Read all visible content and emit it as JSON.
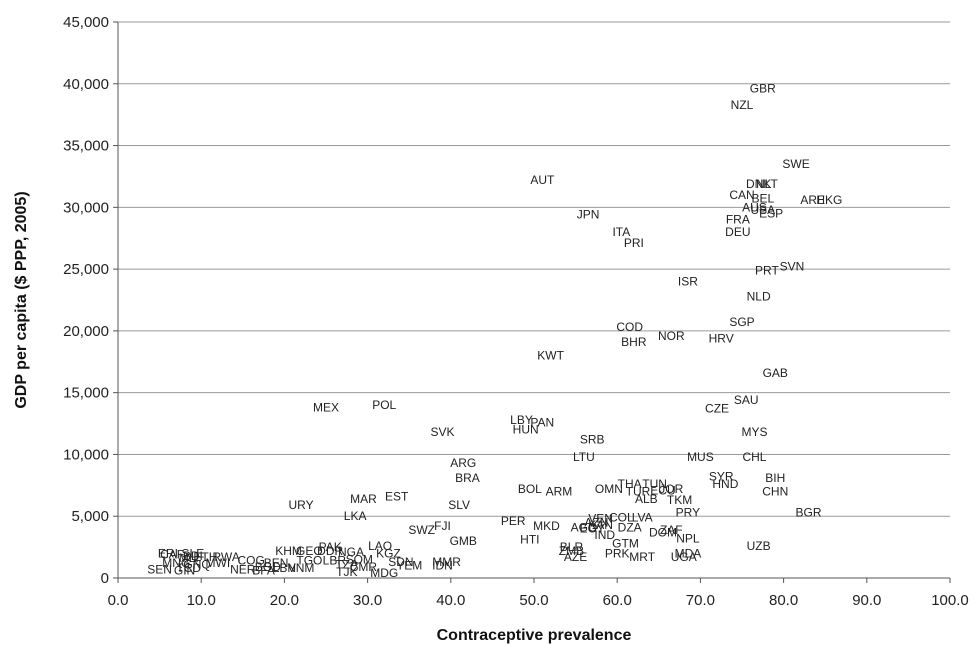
{
  "chart_data": {
    "type": "scatter",
    "title": "",
    "xlabel": "Contraceptive prevalence",
    "ylabel": "GDP per capita ($ PPP, 2005)",
    "xlim": [
      0,
      100
    ],
    "ylim": [
      0,
      45000
    ],
    "grid": "horizontal",
    "marker": "text-labels",
    "x_ticks": [
      "0.0",
      "10.0",
      "20.0",
      "30.0",
      "40.0",
      "50.0",
      "60.0",
      "70.0",
      "80.0",
      "90.0",
      "100.0"
    ],
    "y_ticks": [
      "0",
      "5,000",
      "10,000",
      "15,000",
      "20,000",
      "25,000",
      "30,000",
      "35,000",
      "40,000",
      "45,000"
    ],
    "points": [
      {
        "label": "GBR",
        "x": 77.5,
        "y": 39600
      },
      {
        "label": "NZL",
        "x": 75.0,
        "y": 38300
      },
      {
        "label": "SWE",
        "x": 81.5,
        "y": 33500
      },
      {
        "label": "AUT",
        "x": 51.0,
        "y": 32200
      },
      {
        "label": "DNK",
        "x": 77.0,
        "y": 31900
      },
      {
        "label": "NLT",
        "x": 78.0,
        "y": 31900
      },
      {
        "label": "CAN",
        "x": 75.0,
        "y": 31000
      },
      {
        "label": "BEL",
        "x": 77.5,
        "y": 30700
      },
      {
        "label": "ARE",
        "x": 83.5,
        "y": 30600
      },
      {
        "label": "HKG",
        "x": 85.5,
        "y": 30600
      },
      {
        "label": "AUS",
        "x": 76.5,
        "y": 30000
      },
      {
        "label": "USA",
        "x": 77.5,
        "y": 29800
      },
      {
        "label": "ESP",
        "x": 78.5,
        "y": 29500
      },
      {
        "label": "JPN",
        "x": 56.5,
        "y": 29400
      },
      {
        "label": "FRA",
        "x": 74.5,
        "y": 29000
      },
      {
        "label": "ITA",
        "x": 60.5,
        "y": 28000
      },
      {
        "label": "DEU",
        "x": 74.5,
        "y": 28000
      },
      {
        "label": "PRI",
        "x": 62.0,
        "y": 27100
      },
      {
        "label": "SVN",
        "x": 81.0,
        "y": 25200
      },
      {
        "label": "PRT",
        "x": 78.0,
        "y": 24900
      },
      {
        "label": "ISR",
        "x": 68.5,
        "y": 24000
      },
      {
        "label": "NLD",
        "x": 77.0,
        "y": 22800
      },
      {
        "label": "SGP",
        "x": 75.0,
        "y": 20700
      },
      {
        "label": "COD",
        "x": 61.5,
        "y": 20300
      },
      {
        "label": "NOR",
        "x": 66.5,
        "y": 19600
      },
      {
        "label": "HRV",
        "x": 72.5,
        "y": 19400
      },
      {
        "label": "BHR",
        "x": 62.0,
        "y": 19100
      },
      {
        "label": "KWT",
        "x": 52.0,
        "y": 18000
      },
      {
        "label": "GAB",
        "x": 79.0,
        "y": 16600
      },
      {
        "label": "SAU",
        "x": 75.5,
        "y": 14400
      },
      {
        "label": "POL",
        "x": 32.0,
        "y": 14000
      },
      {
        "label": "MEX",
        "x": 25.0,
        "y": 13800
      },
      {
        "label": "CZE",
        "x": 72.0,
        "y": 13700
      },
      {
        "label": "LBY",
        "x": 48.5,
        "y": 12800
      },
      {
        "label": "PAN",
        "x": 51.0,
        "y": 12600
      },
      {
        "label": "HUN",
        "x": 49.0,
        "y": 12000
      },
      {
        "label": "SVK",
        "x": 39.0,
        "y": 11800
      },
      {
        "label": "MYS",
        "x": 76.5,
        "y": 11800
      },
      {
        "label": "SRB",
        "x": 57.0,
        "y": 11200
      },
      {
        "label": "LTU",
        "x": 56.0,
        "y": 9800
      },
      {
        "label": "MUS",
        "x": 70.0,
        "y": 9800
      },
      {
        "label": "CHL",
        "x": 76.5,
        "y": 9800
      },
      {
        "label": "ARG",
        "x": 41.5,
        "y": 9300
      },
      {
        "label": "BRA",
        "x": 42.0,
        "y": 8100
      },
      {
        "label": "SYR",
        "x": 72.5,
        "y": 8200
      },
      {
        "label": "BIH",
        "x": 79.0,
        "y": 8100
      },
      {
        "label": "THA",
        "x": 61.5,
        "y": 7600
      },
      {
        "label": "TUN",
        "x": 64.5,
        "y": 7600
      },
      {
        "label": "HND",
        "x": 73.0,
        "y": 7600
      },
      {
        "label": "OMN",
        "x": 59.0,
        "y": 7200
      },
      {
        "label": "JOR",
        "x": 66.5,
        "y": 7200
      },
      {
        "label": "BOL",
        "x": 49.5,
        "y": 7200
      },
      {
        "label": "ECU",
        "x": 65.5,
        "y": 7100
      },
      {
        "label": "CHN",
        "x": 79.0,
        "y": 7000
      },
      {
        "label": "TUR",
        "x": 62.5,
        "y": 7000
      },
      {
        "label": "ARM",
        "x": 53.0,
        "y": 7000
      },
      {
        "label": "EST",
        "x": 33.5,
        "y": 6600
      },
      {
        "label": "MAR",
        "x": 29.5,
        "y": 6400
      },
      {
        "label": "ALB",
        "x": 63.5,
        "y": 6400
      },
      {
        "label": "TKM",
        "x": 67.5,
        "y": 6300
      },
      {
        "label": "URY",
        "x": 22.0,
        "y": 5900
      },
      {
        "label": "SLV",
        "x": 41.0,
        "y": 5900
      },
      {
        "label": "BGR",
        "x": 83.0,
        "y": 5300
      },
      {
        "label": "PRY",
        "x": 68.5,
        "y": 5300
      },
      {
        "label": "LKA",
        "x": 28.5,
        "y": 5000
      },
      {
        "label": "COL",
        "x": 60.5,
        "y": 4900
      },
      {
        "label": "LVA",
        "x": 63.0,
        "y": 4900
      },
      {
        "label": "VEN",
        "x": 58.0,
        "y": 4800
      },
      {
        "label": "PER",
        "x": 47.5,
        "y": 4600
      },
      {
        "label": "AZN",
        "x": 57.5,
        "y": 4500
      },
      {
        "label": "KAN",
        "x": 58.0,
        "y": 4300
      },
      {
        "label": "MKD",
        "x": 51.5,
        "y": 4200
      },
      {
        "label": "AGO",
        "x": 56.0,
        "y": 4100
      },
      {
        "label": "DZA",
        "x": 61.5,
        "y": 4100
      },
      {
        "label": "FJI",
        "x": 39.0,
        "y": 4200
      },
      {
        "label": "SWZ",
        "x": 36.5,
        "y": 3900
      },
      {
        "label": "EGY",
        "x": 57.0,
        "y": 4000
      },
      {
        "label": "ZAF",
        "x": 66.5,
        "y": 3900
      },
      {
        "label": "DOM",
        "x": 65.5,
        "y": 3700
      },
      {
        "label": "IND",
        "x": 58.5,
        "y": 3500
      },
      {
        "label": "NPL",
        "x": 68.5,
        "y": 3200
      },
      {
        "label": "HTI",
        "x": 49.5,
        "y": 3100
      },
      {
        "label": "GMB",
        "x": 41.5,
        "y": 3000
      },
      {
        "label": "GTM",
        "x": 61.0,
        "y": 2800
      },
      {
        "label": "UZB",
        "x": 77.0,
        "y": 2600
      },
      {
        "label": "BLR",
        "x": 54.5,
        "y": 2500
      },
      {
        "label": "LAO",
        "x": 31.5,
        "y": 2600
      },
      {
        "label": "PAK",
        "x": 25.5,
        "y": 2500
      },
      {
        "label": "ZMB",
        "x": 54.5,
        "y": 2200
      },
      {
        "label": "KHM",
        "x": 20.5,
        "y": 2200
      },
      {
        "label": "GEO",
        "x": 23.0,
        "y": 2200
      },
      {
        "label": "DDR",
        "x": 25.5,
        "y": 2200
      },
      {
        "label": "NGA",
        "x": 28.0,
        "y": 2100
      },
      {
        "label": "KGZ",
        "x": 32.5,
        "y": 2000
      },
      {
        "label": "PRK",
        "x": 60.0,
        "y": 2000
      },
      {
        "label": "MDA",
        "x": 68.5,
        "y": 2000
      },
      {
        "label": "MRT",
        "x": 63.0,
        "y": 1700
      },
      {
        "label": "UGA",
        "x": 68.0,
        "y": 1700
      },
      {
        "label": "AZE",
        "x": 55.0,
        "y": 1700
      },
      {
        "label": "RWA",
        "x": 13.0,
        "y": 1700
      },
      {
        "label": "COG",
        "x": 16.0,
        "y": 1400
      },
      {
        "label": "SDN",
        "x": 34.0,
        "y": 1300
      },
      {
        "label": "SOM",
        "x": 29.0,
        "y": 1500
      },
      {
        "label": "TGO",
        "x": 23.0,
        "y": 1400
      },
      {
        "label": "LBR",
        "x": 26.0,
        "y": 1400
      },
      {
        "label": "MMR",
        "x": 39.5,
        "y": 1300
      },
      {
        "label": "BEN",
        "x": 19.0,
        "y": 1200
      },
      {
        "label": "TZA",
        "x": 27.5,
        "y": 1100
      },
      {
        "label": "YEM",
        "x": 35.0,
        "y": 1000
      },
      {
        "label": "IDN",
        "x": 39.0,
        "y": 1000
      },
      {
        "label": "CMR",
        "x": 29.5,
        "y": 900
      },
      {
        "label": "LBN",
        "x": 20.0,
        "y": 800
      },
      {
        "label": "VNM",
        "x": 22.0,
        "y": 800
      },
      {
        "label": "BFA",
        "x": 17.5,
        "y": 600
      },
      {
        "label": "NER",
        "x": 15.0,
        "y": 700
      },
      {
        "label": "BGD",
        "x": 18.0,
        "y": 900
      },
      {
        "label": "TJK",
        "x": 27.5,
        "y": 500
      },
      {
        "label": "MDG",
        "x": 32.0,
        "y": 400
      },
      {
        "label": "SEN",
        "x": 5.0,
        "y": 700
      },
      {
        "label": "GIN",
        "x": 8.0,
        "y": 600
      },
      {
        "label": "CAF",
        "x": 6.5,
        "y": 1900
      },
      {
        "label": "BDI",
        "x": 9.0,
        "y": 1800
      },
      {
        "label": "MLI",
        "x": 8.5,
        "y": 1600
      },
      {
        "label": "ETH",
        "x": 10.5,
        "y": 1700
      },
      {
        "label": "ERI",
        "x": 6.0,
        "y": 2000
      },
      {
        "label": "SLE",
        "x": 9.0,
        "y": 2000
      },
      {
        "label": "MNG",
        "x": 7.0,
        "y": 1200
      },
      {
        "label": "GNQ",
        "x": 9.5,
        "y": 1100
      },
      {
        "label": "MWI",
        "x": 12.0,
        "y": 1200
      },
      {
        "label": "TCD",
        "x": 8.5,
        "y": 800
      }
    ]
  }
}
